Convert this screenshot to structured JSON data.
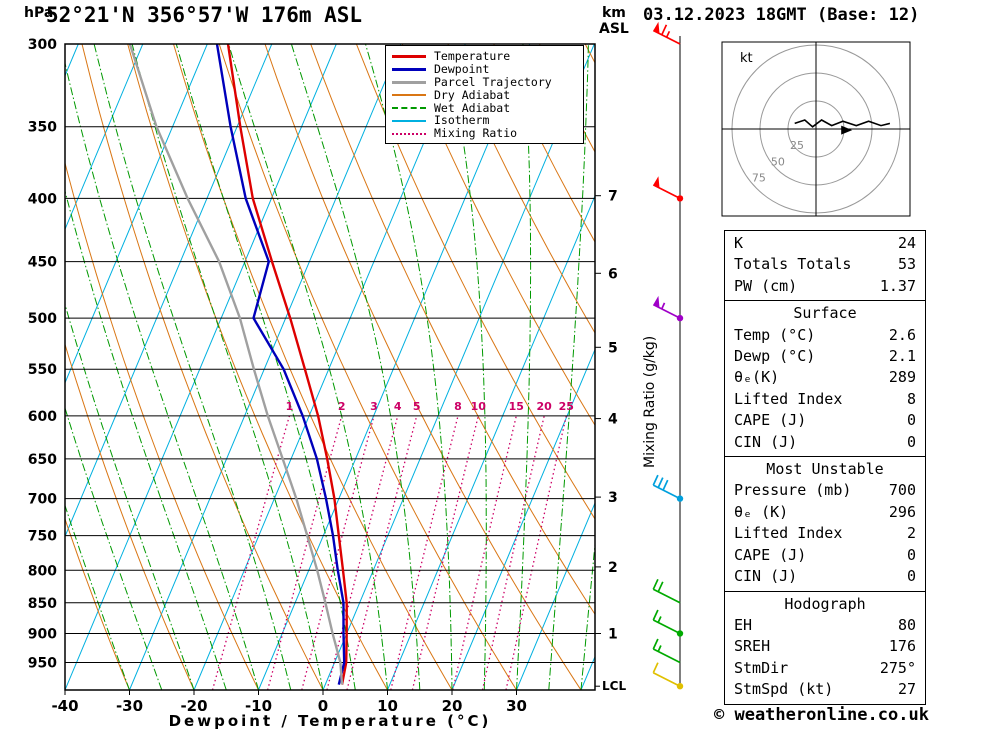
{
  "header": {
    "hpa_label": "hPa",
    "station_title": "52°21'N 356°57'W 176m ASL",
    "km_label": "km",
    "asl_label": "ASL",
    "datetime_title": "03.12.2023 18GMT (Base: 12)"
  },
  "legend": {
    "items": [
      {
        "label": "Temperature",
        "color": "#dd0000",
        "style": "solid",
        "weight": 3
      },
      {
        "label": "Dewpoint",
        "color": "#0000bb",
        "style": "solid",
        "weight": 3
      },
      {
        "label": "Parcel Trajectory",
        "color": "#a0a0a0",
        "style": "solid",
        "weight": 3
      },
      {
        "label": "Dry Adiabat",
        "color": "#d97614",
        "style": "solid",
        "weight": 2
      },
      {
        "label": "Wet Adiabat",
        "color": "#009900",
        "style": "dashed",
        "weight": 2
      },
      {
        "label": "Isotherm",
        "color": "#00b0e0",
        "style": "solid",
        "weight": 2
      },
      {
        "label": "Mixing Ratio",
        "color": "#cc0066",
        "style": "dotted",
        "weight": 2
      }
    ]
  },
  "chart_data": {
    "type": "line",
    "subtype": "skew-t-log-p-sounding",
    "title": "52°21'N 356°57'W 176m ASL",
    "xlabel": "Dewpoint / Temperature (°C)",
    "pressure_range_hpa": [
      300,
      1000
    ],
    "pressure_ticks_hpa": [
      300,
      350,
      400,
      450,
      500,
      550,
      600,
      650,
      700,
      750,
      800,
      850,
      900,
      950
    ],
    "temp_ticks_c": [
      -40,
      -30,
      -20,
      -10,
      0,
      10,
      20,
      30
    ],
    "km_ticks": [
      {
        "label": "7",
        "pressure": 398
      },
      {
        "label": "6",
        "pressure": 460
      },
      {
        "label": "5",
        "pressure": 528
      },
      {
        "label": "4",
        "pressure": 603
      },
      {
        "label": "3",
        "pressure": 698
      },
      {
        "label": "2",
        "pressure": 795
      },
      {
        "label": "1",
        "pressure": 900
      }
    ],
    "lcl_label": "LCL",
    "lcl_pressure": 993,
    "mixing_ratio_label": "Mixing Ratio (g/kg)",
    "mixing_ratio_lines_g_kg": [
      1,
      2,
      3,
      4,
      5,
      8,
      10,
      15,
      20,
      25
    ],
    "isotherms_c": {
      "min": -80,
      "max": 40,
      "step": 10
    },
    "dry_adiabats_c": {
      "min": -30,
      "max": 110,
      "step": 10
    },
    "wet_adiabats_c": {
      "min": -30,
      "max": 40,
      "step": 5
    },
    "series": [
      {
        "name": "Temperature",
        "color": "#dd0000",
        "points_p_t": [
          [
            990,
            2.6
          ],
          [
            950,
            1.8
          ],
          [
            900,
            0.0
          ],
          [
            850,
            -2.0
          ],
          [
            800,
            -4.7
          ],
          [
            750,
            -7.6
          ],
          [
            700,
            -10.7
          ],
          [
            650,
            -14.4
          ],
          [
            600,
            -18.6
          ],
          [
            550,
            -23.7
          ],
          [
            500,
            -29.3
          ],
          [
            450,
            -35.8
          ],
          [
            400,
            -42.9
          ],
          [
            350,
            -49.5
          ],
          [
            300,
            -56.8
          ]
        ]
      },
      {
        "name": "Dewpoint",
        "color": "#0000bb",
        "points_p_t": [
          [
            990,
            2.1
          ],
          [
            950,
            1.5
          ],
          [
            900,
            -0.5
          ],
          [
            850,
            -2.5
          ],
          [
            800,
            -5.5
          ],
          [
            750,
            -8.5
          ],
          [
            700,
            -12.0
          ],
          [
            650,
            -16.0
          ],
          [
            600,
            -21.0
          ],
          [
            550,
            -27.0
          ],
          [
            500,
            -35.0
          ],
          [
            450,
            -36.3
          ],
          [
            400,
            -44.0
          ],
          [
            350,
            -51.0
          ],
          [
            300,
            -58.5
          ]
        ]
      },
      {
        "name": "Parcel Trajectory",
        "color": "#a0a0a0",
        "points_p_t": [
          [
            990,
            2.6
          ],
          [
            950,
            0.9
          ],
          [
            900,
            -2.2
          ],
          [
            850,
            -5.3
          ],
          [
            800,
            -8.7
          ],
          [
            750,
            -12.5
          ],
          [
            700,
            -16.6
          ],
          [
            650,
            -21.3
          ],
          [
            600,
            -26.4
          ],
          [
            550,
            -31.6
          ],
          [
            500,
            -37.1
          ],
          [
            450,
            -44.0
          ],
          [
            400,
            -53.0
          ],
          [
            350,
            -62.5
          ],
          [
            300,
            -72.0
          ]
        ]
      }
    ]
  },
  "winds": {
    "barbs": [
      {
        "pressure": 300,
        "speed_kt": 65,
        "color": "#ff0000",
        "dot": false
      },
      {
        "pressure": 400,
        "speed_kt": 50,
        "color": "#ff0000",
        "dot": true
      },
      {
        "pressure": 500,
        "speed_kt": 55,
        "color": "#a000c8",
        "dot": true
      },
      {
        "pressure": 700,
        "speed_kt": 30,
        "color": "#00a0dd",
        "dot": true
      },
      {
        "pressure": 850,
        "speed_kt": 20,
        "color": "#00aa00",
        "dot": false
      },
      {
        "pressure": 900,
        "speed_kt": 15,
        "color": "#00aa00",
        "dot": true
      },
      {
        "pressure": 950,
        "speed_kt": 15,
        "color": "#00aa00",
        "dot": false
      },
      {
        "pressure": 993,
        "speed_kt": 10,
        "color": "#e0c000",
        "dot": true
      }
    ]
  },
  "hodograph": {
    "unit_label": "kt",
    "rings_kt": [
      25,
      50,
      75
    ],
    "trace_uv_kt": [
      [
        -19,
        5
      ],
      [
        -10,
        8
      ],
      [
        -3,
        2
      ],
      [
        5,
        8
      ],
      [
        14,
        3
      ],
      [
        24,
        7
      ],
      [
        36,
        3
      ],
      [
        47,
        7
      ],
      [
        58,
        3
      ],
      [
        66,
        5
      ]
    ],
    "storm_motion_uv_kt": [
      27,
      -1
    ]
  },
  "table": {
    "sections": [
      {
        "title": "",
        "rows": [
          [
            "K",
            "24"
          ],
          [
            "Totals Totals",
            "53"
          ],
          [
            "PW (cm)",
            "1.37"
          ]
        ]
      },
      {
        "title": "Surface",
        "rows": [
          [
            "Temp (°C)",
            "2.6"
          ],
          [
            "Dewp (°C)",
            "2.1"
          ],
          [
            "θₑ(K)",
            "289"
          ],
          [
            "Lifted Index",
            "8"
          ],
          [
            "CAPE (J)",
            "0"
          ],
          [
            "CIN (J)",
            "0"
          ]
        ]
      },
      {
        "title": "Most Unstable",
        "rows": [
          [
            "Pressure (mb)",
            "700"
          ],
          [
            "θₑ (K)",
            "296"
          ],
          [
            "Lifted Index",
            "2"
          ],
          [
            "CAPE (J)",
            "0"
          ],
          [
            "CIN (J)",
            "0"
          ]
        ]
      },
      {
        "title": "Hodograph",
        "rows": [
          [
            "EH",
            "80"
          ],
          [
            "SREH",
            "176"
          ],
          [
            "StmDir",
            "275°"
          ],
          [
            "StmSpd (kt)",
            "27"
          ]
        ]
      }
    ]
  },
  "footer": {
    "copyright": "© weatheronline.co.uk"
  }
}
